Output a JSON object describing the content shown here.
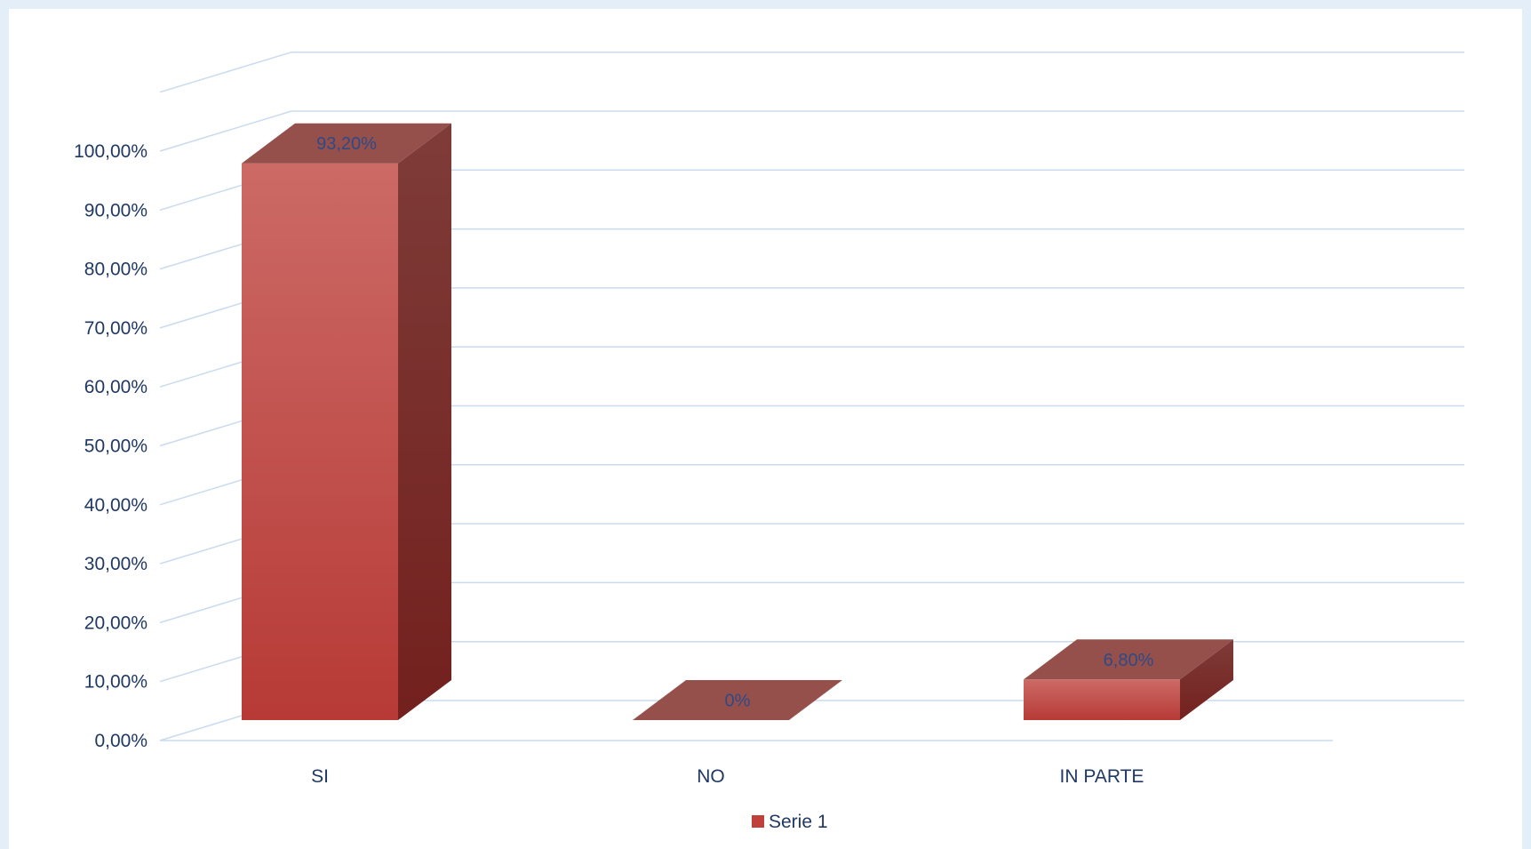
{
  "chart_data": {
    "type": "bar",
    "categories": [
      "SI",
      "NO",
      "IN PARTE"
    ],
    "series": [
      {
        "name": "Serie 1",
        "values": [
          93.2,
          0,
          6.8
        ],
        "color": "#c0403c"
      }
    ],
    "data_labels": [
      "93,20%",
      "0%",
      "6,80%"
    ],
    "y_tick_labels": [
      "0,00%",
      "10,00%",
      "20,00%",
      "30,00%",
      "40,00%",
      "50,00%",
      "60,00%",
      "70,00%",
      "80,00%",
      "90,00%",
      "100,00%"
    ],
    "ylim": [
      0,
      100
    ],
    "grid": true,
    "three_d": true,
    "legend": "bottom",
    "colors": {
      "bar_front": "#c0403c",
      "bar_side": "#7a2a28",
      "bar_top": "#96504c",
      "gridline": "#c9dbef",
      "text": "#1f3864",
      "background": "#e3eef8"
    }
  }
}
